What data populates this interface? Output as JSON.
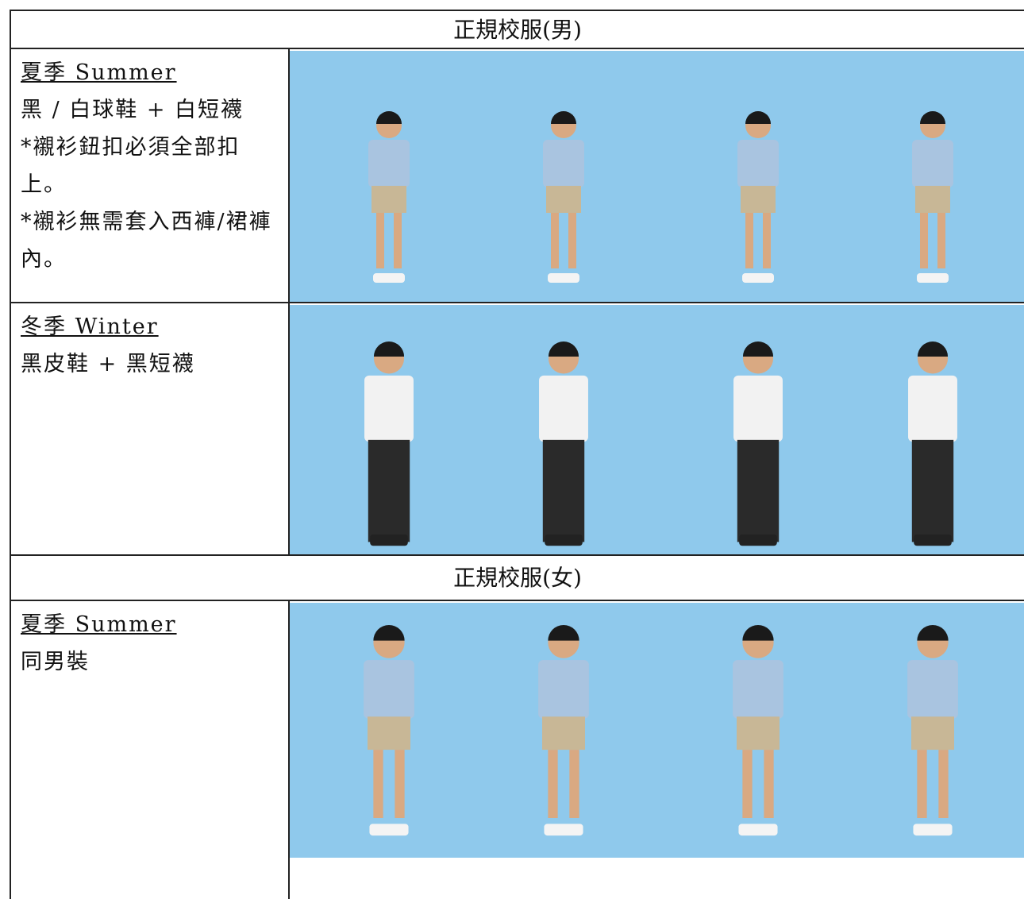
{
  "sections": [
    {
      "title": "正規校服(男)",
      "rows": [
        {
          "season": "夏季 Summer",
          "lines": [
            "黑 / 白球鞋 + 白短襪",
            "*襯衫鈕扣必須全部扣上。",
            "*襯衫無需套入西褲/裙褲內。"
          ]
        },
        {
          "season": "冬季 Winter",
          "lines": [
            "黑皮鞋 + 黑短襪"
          ]
        }
      ]
    },
    {
      "title": "正規校服(女)",
      "rows": [
        {
          "season": "夏季 Summer",
          "lines": [
            "同男裝"
          ]
        }
      ]
    }
  ]
}
